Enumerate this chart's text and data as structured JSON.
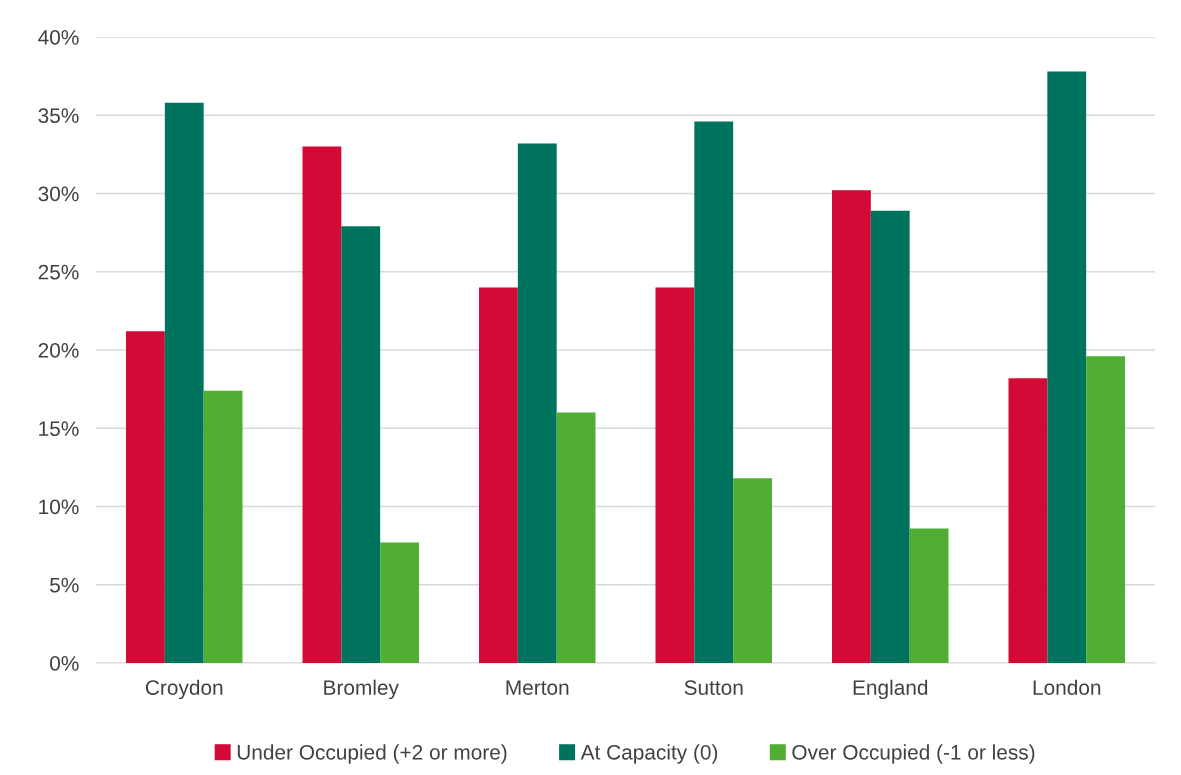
{
  "chart_data": {
    "type": "bar",
    "categories": [
      "Croydon",
      "Bromley",
      "Merton",
      "Sutton",
      "England",
      "London"
    ],
    "series": [
      {
        "name": "Under Occupied (+2 or more)",
        "color": "#d20a35",
        "values": [
          21.2,
          33.0,
          24.0,
          24.0,
          30.2,
          18.2
        ]
      },
      {
        "name": "At Capacity (0)",
        "color": "#00735f",
        "values": [
          35.8,
          27.9,
          33.2,
          34.6,
          28.9,
          37.8
        ]
      },
      {
        "name": "Over Occupied (-1 or less)",
        "color": "#52ae32",
        "values": [
          17.4,
          7.7,
          16.0,
          11.8,
          8.6,
          19.6
        ]
      }
    ],
    "ylim": [
      0,
      40
    ],
    "yticks": [
      {
        "value": 0,
        "label": "0%"
      },
      {
        "value": 5,
        "label": "5%"
      },
      {
        "value": 10,
        "label": "10%"
      },
      {
        "value": 15,
        "label": "15%"
      },
      {
        "value": 20,
        "label": "20%"
      },
      {
        "value": 25,
        "label": "25%"
      },
      {
        "value": 30,
        "label": "30%"
      },
      {
        "value": 35,
        "label": "35%"
      },
      {
        "value": 40,
        "label": "40%"
      }
    ],
    "grid": "y",
    "legend": "bottom"
  }
}
